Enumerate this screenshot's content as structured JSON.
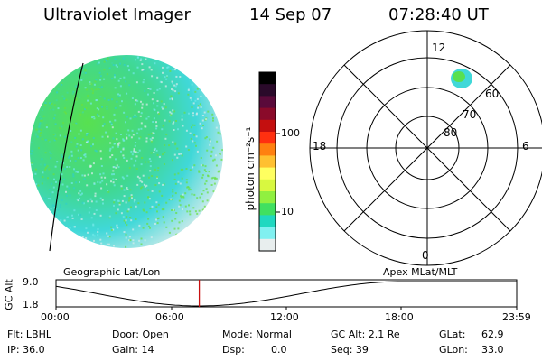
{
  "header": {
    "instrument": "Ultraviolet Imager",
    "date": "14 Sep 07",
    "time": "07:28:40 UT"
  },
  "colorbar": {
    "unit_label": "photon cm⁻²s⁻¹",
    "tick_labels": [
      "100",
      "10"
    ],
    "colors": [
      "#000000",
      "#2a0a2a",
      "#5a0a3a",
      "#8a0a2a",
      "#c40f0f",
      "#ff3010",
      "#ff8010",
      "#ffc030",
      "#ffff60",
      "#d8f840",
      "#90f040",
      "#40e060",
      "#20d8c0",
      "#80f0f0",
      "#e8eeee"
    ]
  },
  "polar_plot": {
    "mlt_labels": {
      "top": "12",
      "left": "18",
      "right": "6",
      "bottom": "0"
    },
    "lat_labels": [
      "60",
      "70",
      "80"
    ]
  },
  "projection_labels": {
    "left": "Geographic Lat/Lon",
    "right": "Apex MLat/MLT"
  },
  "altitude_plot": {
    "ylabel": "GC Alt",
    "ytick_top": "9.0",
    "ytick_bottom": "1.8",
    "xticks": [
      "00:00",
      "06:00",
      "12:00",
      "18:00",
      "23:59"
    ],
    "current_time_fraction": 0.311
  },
  "status": {
    "filter": "Flt: LBHL",
    "ip": "IP: 36.0",
    "door": "Door: Open",
    "gain": "Gain: 14",
    "mode": "Mode: Normal",
    "dsp_label": "Dsp:",
    "dsp_value": "0.0",
    "gc_alt": "GC Alt: 2.1 Re",
    "seq": "Seq: 39",
    "glat_label": "GLat:",
    "glat_value": "62.9",
    "glon_label": "GLon:",
    "glon_value": "33.0"
  }
}
